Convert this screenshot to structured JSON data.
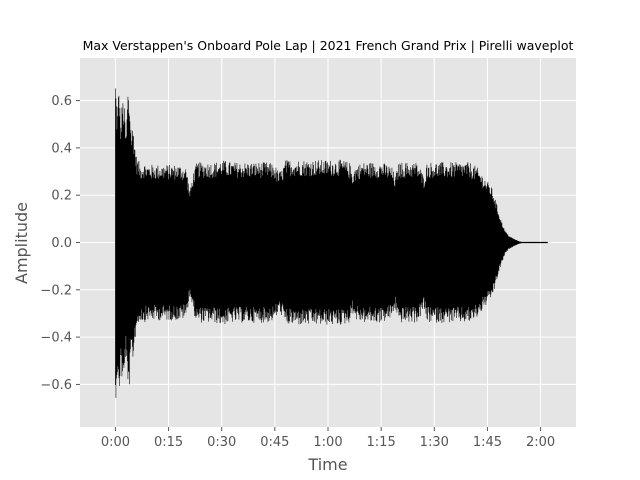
{
  "chart_data": {
    "type": "line",
    "title": "Max Verstappen's Onboard Pole Lap | 2021 French Grand Prix | Pirelli waveplot",
    "xlabel": "Time",
    "ylabel": "Amplitude",
    "xlim": [
      -10,
      130
    ],
    "ylim": [
      -0.78,
      0.78
    ],
    "x_ticks": [
      {
        "value": 0,
        "label": "0:00"
      },
      {
        "value": 15,
        "label": "0:15"
      },
      {
        "value": 30,
        "label": "0:30"
      },
      {
        "value": 45,
        "label": "0:45"
      },
      {
        "value": 60,
        "label": "1:00"
      },
      {
        "value": 75,
        "label": "1:15"
      },
      {
        "value": 90,
        "label": "1:30"
      },
      {
        "value": 105,
        "label": "1:45"
      },
      {
        "value": 120,
        "label": "2:00"
      }
    ],
    "y_ticks": [
      {
        "value": 0.6,
        "label": "0.6"
      },
      {
        "value": 0.4,
        "label": "0.4"
      },
      {
        "value": 0.2,
        "label": "0.2"
      },
      {
        "value": 0.0,
        "label": "0.0"
      },
      {
        "value": -0.2,
        "label": "−0.2"
      },
      {
        "value": -0.4,
        "label": "−0.4"
      },
      {
        "value": -0.6,
        "label": "−0.6"
      }
    ],
    "grid": true,
    "colors": {
      "plot_background": "#e5e5e5",
      "grid": "#ffffff",
      "wave": "#000000",
      "text": "#555555"
    },
    "series": [
      {
        "time_s": [
          0,
          0.5,
          1,
          1.5,
          2,
          2.5,
          3,
          3.5,
          4,
          4.5,
          5,
          5.5,
          6,
          6.5,
          7,
          8,
          9,
          10,
          12,
          15,
          18,
          20,
          21,
          22,
          23,
          25,
          28,
          30,
          33,
          36,
          40,
          43,
          45,
          46,
          47,
          48,
          50,
          55,
          60,
          64,
          66,
          67,
          68,
          70,
          72,
          75,
          77,
          78,
          79,
          80,
          82,
          85,
          86,
          87,
          88,
          90,
          93,
          95,
          98,
          100,
          102,
          103,
          104,
          105,
          106,
          107,
          108,
          109,
          110,
          111,
          112,
          113,
          114,
          115,
          116,
          117,
          118,
          119,
          120,
          121,
          122
        ],
        "envelope_amplitude": [
          0.7,
          0.55,
          0.68,
          0.5,
          0.62,
          0.58,
          0.45,
          0.66,
          0.6,
          0.48,
          0.5,
          0.42,
          0.36,
          0.35,
          0.33,
          0.34,
          0.33,
          0.33,
          0.33,
          0.33,
          0.33,
          0.32,
          0.22,
          0.3,
          0.34,
          0.34,
          0.34,
          0.35,
          0.34,
          0.34,
          0.34,
          0.34,
          0.33,
          0.3,
          0.31,
          0.35,
          0.35,
          0.35,
          0.35,
          0.35,
          0.34,
          0.3,
          0.33,
          0.34,
          0.34,
          0.34,
          0.33,
          0.32,
          0.28,
          0.34,
          0.34,
          0.34,
          0.32,
          0.28,
          0.34,
          0.34,
          0.34,
          0.34,
          0.34,
          0.34,
          0.32,
          0.3,
          0.28,
          0.26,
          0.24,
          0.2,
          0.14,
          0.09,
          0.05,
          0.03,
          0.02,
          0.012,
          0.005,
          0.001,
          0.001,
          0.001,
          0.001,
          0.001,
          0.001,
          0.001,
          0.001
        ]
      }
    ]
  }
}
